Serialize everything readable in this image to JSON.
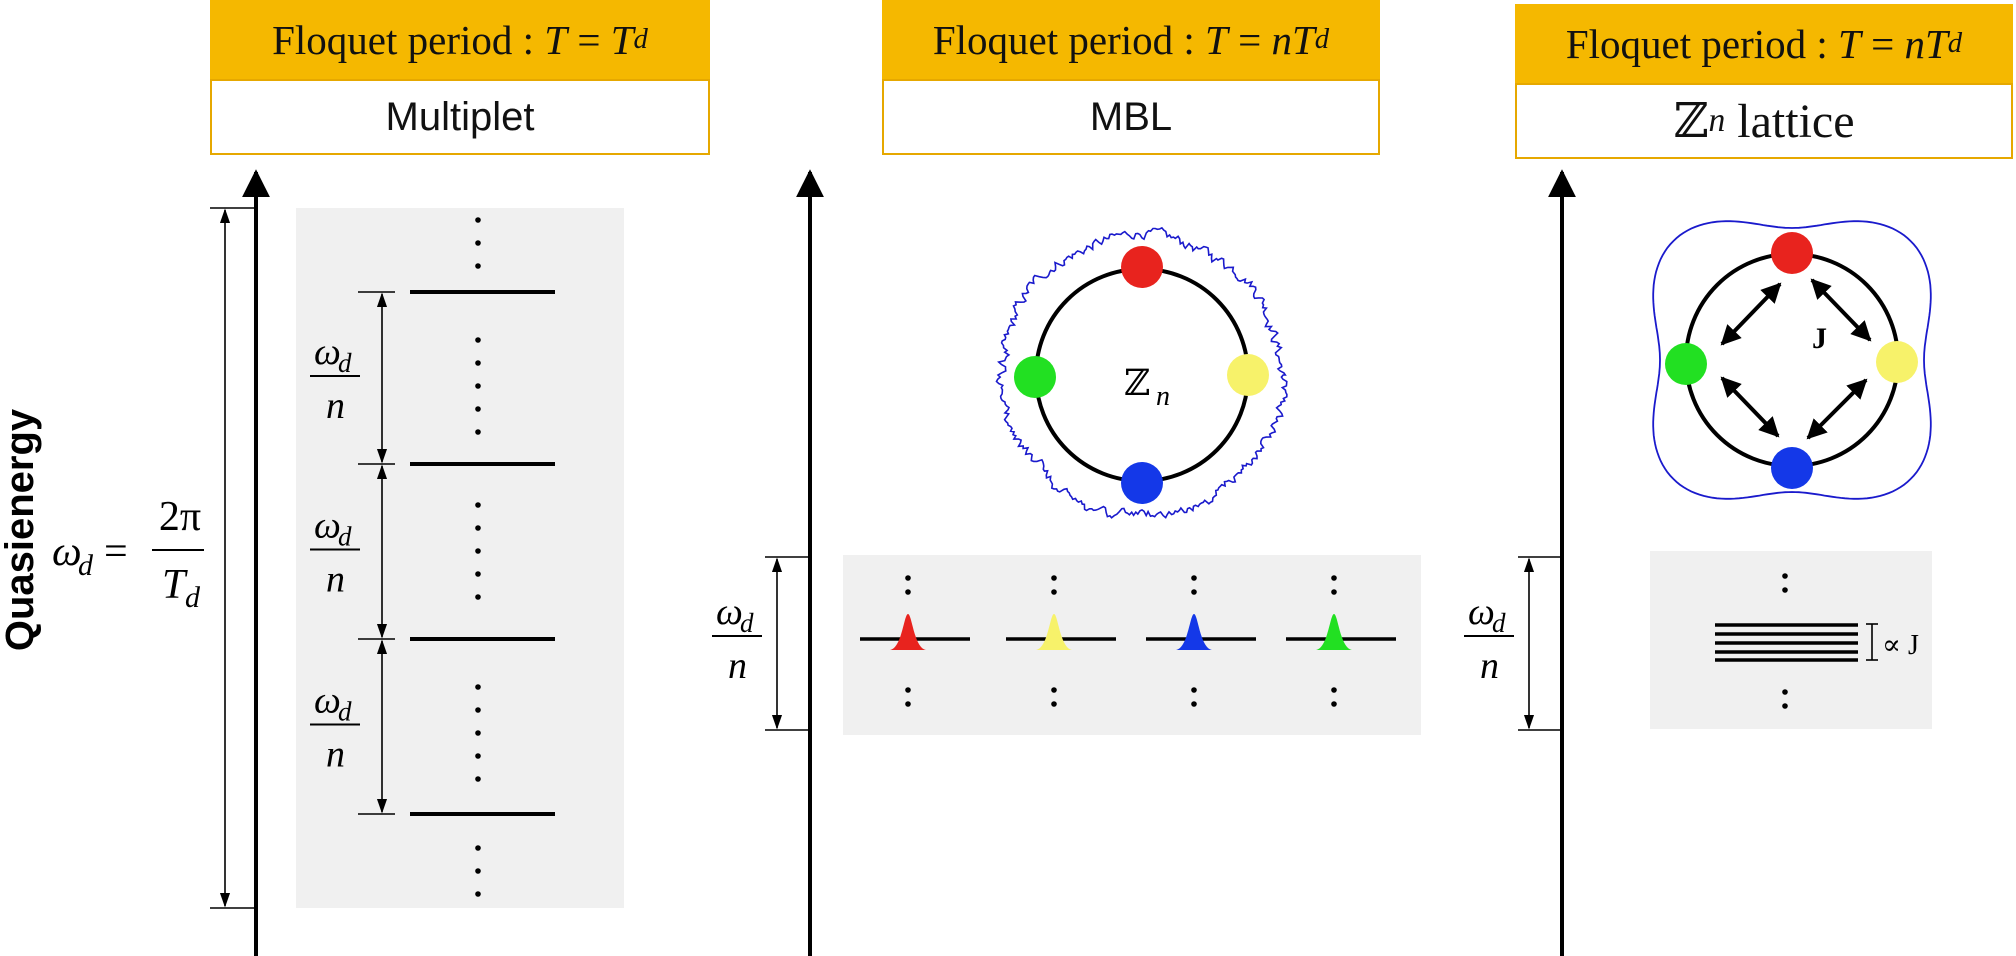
{
  "colors": {
    "header_fill": "#F5B800",
    "header_border": "#E6A800",
    "panel_bg": "#F0F0F0",
    "axis": "#000000",
    "red": "#E8231E",
    "yellow": "#F7F26A",
    "blue": "#1438E8",
    "green": "#22E022",
    "noise_ring": "#1A1ACC"
  },
  "y_axis_label": "Quasienergy",
  "math": {
    "omega": "ω",
    "d": "d",
    "n": "n",
    "two_pi": "2π",
    "T": "T",
    "equals": "=",
    "Zn_Z": "ℤ",
    "J": "J",
    "propto_J": "∝ J",
    "vdots": "⋮"
  },
  "panels": [
    {
      "header_prefix": "Floquet period : ",
      "header_T": "T",
      "header_eq": " = ",
      "header_n": "",
      "header_Td": "T",
      "header_d": "d",
      "subtitle": "Multiplet"
    },
    {
      "header_prefix": "Floquet period : ",
      "header_T": "T",
      "header_eq": " = ",
      "header_n": "n",
      "header_Td": "T",
      "header_d": "d",
      "subtitle": "MBL"
    },
    {
      "header_prefix": "Floquet period : ",
      "header_T": "T",
      "header_eq": " = ",
      "header_n": "n",
      "header_Td": "T",
      "header_d": "d",
      "subtitle_Z": "ℤ",
      "subtitle_n": "n",
      "subtitle_rest": " lattice"
    }
  ]
}
